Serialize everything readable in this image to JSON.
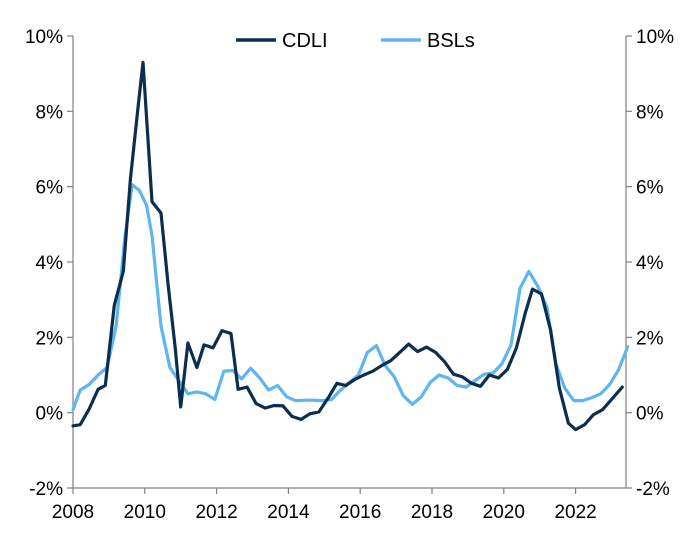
{
  "chart_data": {
    "type": "line",
    "title": "",
    "xlabel": "",
    "ylabel": "",
    "xlim": [
      2008,
      2023.75
    ],
    "ylim": [
      -2,
      10
    ],
    "x_ticks": [
      2008,
      2010,
      2012,
      2014,
      2016,
      2018,
      2020,
      2022
    ],
    "y_ticks": [
      -2,
      0,
      2,
      4,
      6,
      8,
      10
    ],
    "y_tick_labels": [
      "-2%",
      "0%",
      "2%",
      "4%",
      "6%",
      "8%",
      "10%"
    ],
    "secondary_y_axis": true,
    "grid": false,
    "legend_position": "top-center",
    "series": [
      {
        "name": "CDLI",
        "color": "#0b2e4f",
        "points": [
          [
            2008.0,
            -0.35
          ],
          [
            2008.2,
            -0.32
          ],
          [
            2008.45,
            0.1
          ],
          [
            2008.7,
            0.62
          ],
          [
            2008.9,
            0.72
          ],
          [
            2009.15,
            2.85
          ],
          [
            2009.4,
            3.75
          ],
          [
            2009.6,
            6.2
          ],
          [
            2009.8,
            8.0
          ],
          [
            2009.95,
            9.3
          ],
          [
            2010.2,
            5.6
          ],
          [
            2010.45,
            5.3
          ],
          [
            2010.65,
            3.4
          ],
          [
            2010.85,
            1.7
          ],
          [
            2011.0,
            0.15
          ],
          [
            2011.2,
            1.85
          ],
          [
            2011.45,
            1.2
          ],
          [
            2011.65,
            1.8
          ],
          [
            2011.9,
            1.72
          ],
          [
            2012.15,
            2.18
          ],
          [
            2012.4,
            2.1
          ],
          [
            2012.6,
            0.62
          ],
          [
            2012.85,
            0.68
          ],
          [
            2013.1,
            0.24
          ],
          [
            2013.35,
            0.12
          ],
          [
            2013.6,
            0.19
          ],
          [
            2013.85,
            0.18
          ],
          [
            2014.1,
            -0.1
          ],
          [
            2014.35,
            -0.18
          ],
          [
            2014.6,
            -0.03
          ],
          [
            2014.85,
            0.02
          ],
          [
            2015.1,
            0.38
          ],
          [
            2015.35,
            0.78
          ],
          [
            2015.6,
            0.72
          ],
          [
            2015.85,
            0.88
          ],
          [
            2016.1,
            1.0
          ],
          [
            2016.35,
            1.1
          ],
          [
            2016.6,
            1.25
          ],
          [
            2016.85,
            1.38
          ],
          [
            2017.1,
            1.6
          ],
          [
            2017.35,
            1.82
          ],
          [
            2017.6,
            1.62
          ],
          [
            2017.85,
            1.74
          ],
          [
            2018.1,
            1.6
          ],
          [
            2018.35,
            1.35
          ],
          [
            2018.6,
            1.02
          ],
          [
            2018.85,
            0.95
          ],
          [
            2019.1,
            0.78
          ],
          [
            2019.35,
            0.7
          ],
          [
            2019.6,
            1.0
          ],
          [
            2019.85,
            0.92
          ],
          [
            2020.1,
            1.15
          ],
          [
            2020.35,
            1.72
          ],
          [
            2020.6,
            2.65
          ],
          [
            2020.8,
            3.28
          ],
          [
            2021.05,
            3.15
          ],
          [
            2021.3,
            2.2
          ],
          [
            2021.55,
            0.65
          ],
          [
            2021.8,
            -0.28
          ],
          [
            2022.0,
            -0.45
          ],
          [
            2022.25,
            -0.32
          ],
          [
            2022.5,
            -0.05
          ],
          [
            2022.75,
            0.08
          ],
          [
            2023.0,
            0.35
          ],
          [
            2023.3,
            0.68
          ]
        ]
      },
      {
        "name": "BSLs",
        "color": "#5fb4f2",
        "points": [
          [
            2008.0,
            0.08
          ],
          [
            2008.2,
            0.6
          ],
          [
            2008.45,
            0.75
          ],
          [
            2008.7,
            1.0
          ],
          [
            2008.95,
            1.2
          ],
          [
            2009.2,
            2.3
          ],
          [
            2009.45,
            4.7
          ],
          [
            2009.65,
            6.05
          ],
          [
            2009.85,
            5.9
          ],
          [
            2010.05,
            5.5
          ],
          [
            2010.2,
            4.7
          ],
          [
            2010.45,
            2.3
          ],
          [
            2010.7,
            1.2
          ],
          [
            2010.95,
            0.85
          ],
          [
            2011.2,
            0.5
          ],
          [
            2011.45,
            0.55
          ],
          [
            2011.7,
            0.5
          ],
          [
            2011.95,
            0.35
          ],
          [
            2012.2,
            1.1
          ],
          [
            2012.45,
            1.12
          ],
          [
            2012.7,
            0.9
          ],
          [
            2012.95,
            1.18
          ],
          [
            2013.2,
            0.92
          ],
          [
            2013.45,
            0.6
          ],
          [
            2013.7,
            0.72
          ],
          [
            2013.95,
            0.42
          ],
          [
            2014.2,
            0.32
          ],
          [
            2014.45,
            0.33
          ],
          [
            2014.7,
            0.33
          ],
          [
            2014.95,
            0.32
          ],
          [
            2015.2,
            0.35
          ],
          [
            2015.45,
            0.6
          ],
          [
            2015.7,
            0.8
          ],
          [
            2015.95,
            1.0
          ],
          [
            2016.2,
            1.6
          ],
          [
            2016.45,
            1.78
          ],
          [
            2016.7,
            1.25
          ],
          [
            2016.95,
            0.95
          ],
          [
            2017.2,
            0.45
          ],
          [
            2017.45,
            0.22
          ],
          [
            2017.7,
            0.42
          ],
          [
            2017.95,
            0.8
          ],
          [
            2018.2,
            1.0
          ],
          [
            2018.45,
            0.92
          ],
          [
            2018.7,
            0.72
          ],
          [
            2018.95,
            0.68
          ],
          [
            2019.2,
            0.85
          ],
          [
            2019.45,
            1.02
          ],
          [
            2019.7,
            1.05
          ],
          [
            2019.95,
            1.3
          ],
          [
            2020.2,
            1.8
          ],
          [
            2020.45,
            3.3
          ],
          [
            2020.7,
            3.75
          ],
          [
            2020.95,
            3.35
          ],
          [
            2021.2,
            2.8
          ],
          [
            2021.45,
            1.3
          ],
          [
            2021.7,
            0.65
          ],
          [
            2021.95,
            0.32
          ],
          [
            2022.2,
            0.32
          ],
          [
            2022.45,
            0.4
          ],
          [
            2022.7,
            0.5
          ],
          [
            2022.95,
            0.75
          ],
          [
            2023.2,
            1.15
          ],
          [
            2023.45,
            1.75
          ]
        ]
      }
    ]
  }
}
